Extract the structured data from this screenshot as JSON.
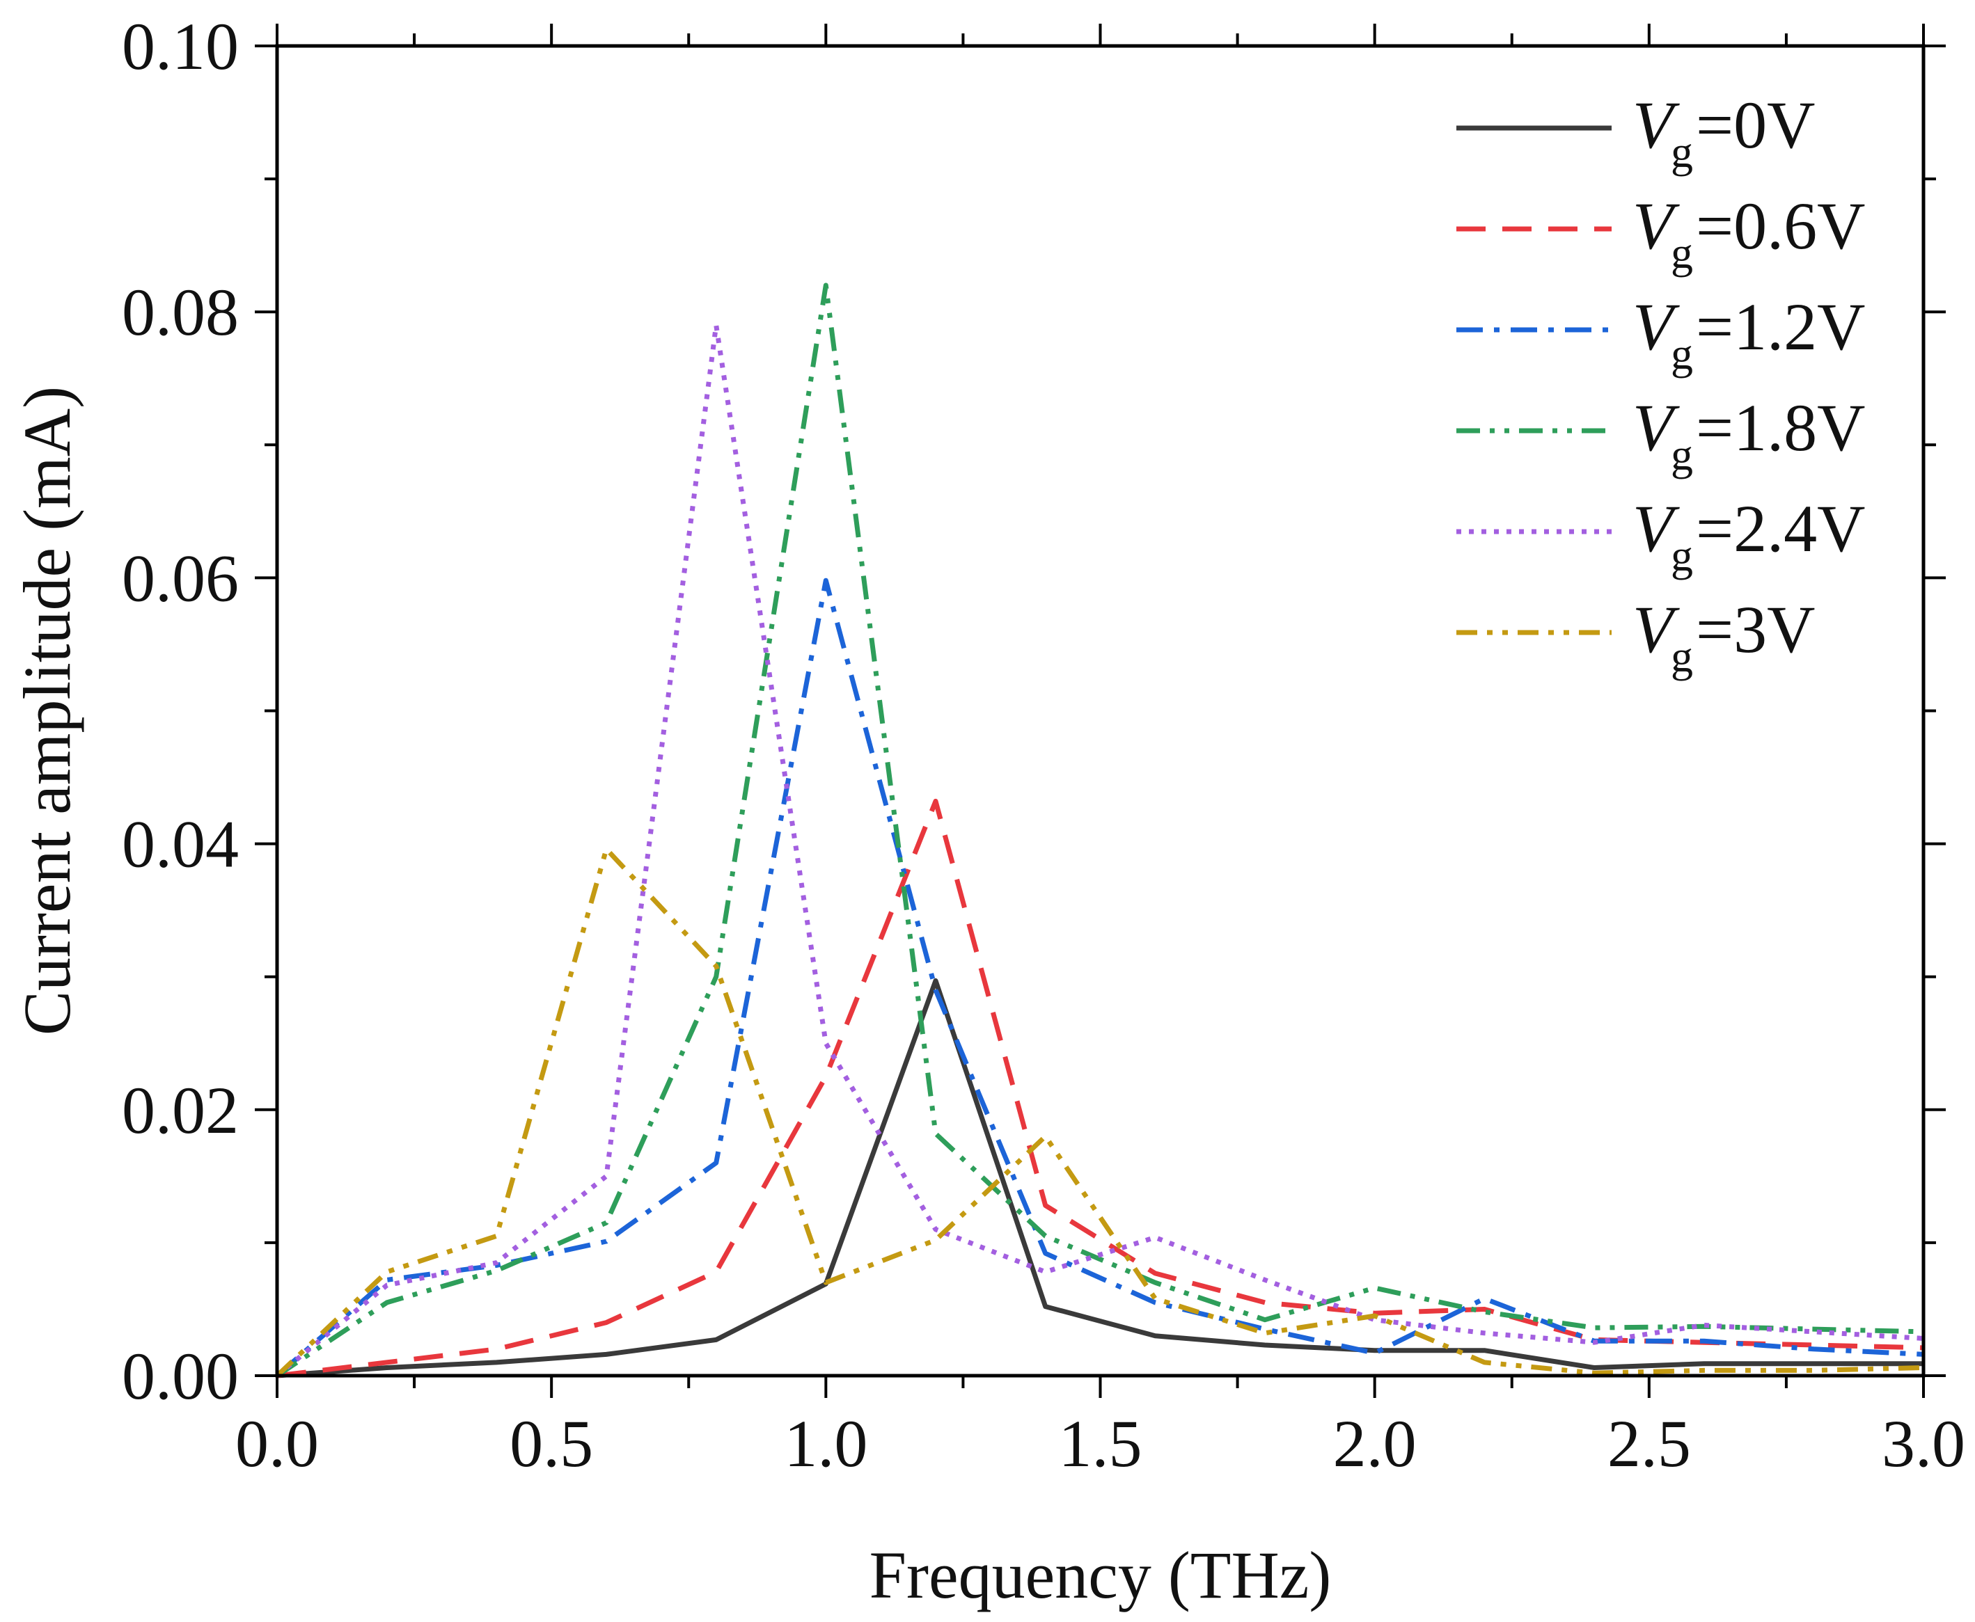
{
  "chart_data": {
    "type": "line",
    "title": "",
    "xlabel": "Frequency (THz)",
    "ylabel": "Current amplitude (mA)",
    "xlim": [
      0.0,
      3.0
    ],
    "ylim": [
      0.0,
      0.1
    ],
    "xticks": [
      "0.0",
      "0.5",
      "1.0",
      "1.5",
      "2.0",
      "2.5",
      "3.0"
    ],
    "yticks": [
      "0.00",
      "0.02",
      "0.04",
      "0.06",
      "0.08",
      "0.10"
    ],
    "grid": false,
    "legend_position": "top-right",
    "x": [
      0.0,
      0.2,
      0.4,
      0.6,
      0.8,
      1.0,
      1.2,
      1.4,
      1.6,
      1.8,
      2.0,
      2.2,
      2.4,
      2.6,
      2.8,
      3.0
    ],
    "series": [
      {
        "name": "Vg=0V",
        "symbol": "V",
        "subscript": "g",
        "value_text": "=0V",
        "color": "#3a3a3a",
        "dash": "solid",
        "values": [
          0.0,
          0.0006,
          0.001,
          0.0016,
          0.0027,
          0.0069,
          0.0297,
          0.0052,
          0.003,
          0.0023,
          0.0019,
          0.0019,
          0.0006,
          0.0009,
          0.0009,
          0.0009
        ]
      },
      {
        "name": "Vg=0.6V",
        "symbol": "V",
        "subscript": "g",
        "value_text": "=0.6V",
        "color": "#e8373d",
        "dash": "dash",
        "values": [
          0.0,
          0.001,
          0.002,
          0.004,
          0.0078,
          0.0225,
          0.0432,
          0.0128,
          0.0077,
          0.0055,
          0.0047,
          0.005,
          0.0027,
          0.0025,
          0.0023,
          0.0021
        ]
      },
      {
        "name": "Vg=1.2V",
        "symbol": "V",
        "subscript": "g",
        "value_text": "=1.2V",
        "color": "#1c64d8",
        "dash": "dashdot",
        "values": [
          0.0,
          0.0072,
          0.0083,
          0.0101,
          0.016,
          0.0598,
          0.029,
          0.0092,
          0.0055,
          0.0035,
          0.0017,
          0.0058,
          0.0026,
          0.0026,
          0.002,
          0.0016
        ]
      },
      {
        "name": "Vg=1.8V",
        "symbol": "V",
        "subscript": "g",
        "value_text": "=1.8V",
        "color": "#2e9e5a",
        "dash": "dashdotdot",
        "values": [
          0.0,
          0.0055,
          0.0079,
          0.0115,
          0.03,
          0.082,
          0.0182,
          0.0105,
          0.007,
          0.0042,
          0.0066,
          0.0048,
          0.0036,
          0.0037,
          0.0035,
          0.0033
        ]
      },
      {
        "name": "Vg=2.4V",
        "symbol": "V",
        "subscript": "g",
        "value_text": "=2.4V",
        "color": "#a35fe0",
        "dash": "dot",
        "values": [
          0.0,
          0.0068,
          0.0085,
          0.015,
          0.079,
          0.025,
          0.011,
          0.0078,
          0.0104,
          0.0072,
          0.0042,
          0.0032,
          0.0025,
          0.0038,
          0.0033,
          0.0028
        ]
      },
      {
        "name": "Vg=3V",
        "symbol": "V",
        "subscript": "g",
        "value_text": "=3V",
        "color": "#c49a12",
        "dash": "dashdotlong",
        "values": [
          0.0,
          0.0078,
          0.0105,
          0.0396,
          0.0308,
          0.007,
          0.0102,
          0.018,
          0.0058,
          0.0032,
          0.0045,
          0.001,
          0.0002,
          0.0004,
          0.0004,
          0.0006
        ]
      }
    ]
  }
}
